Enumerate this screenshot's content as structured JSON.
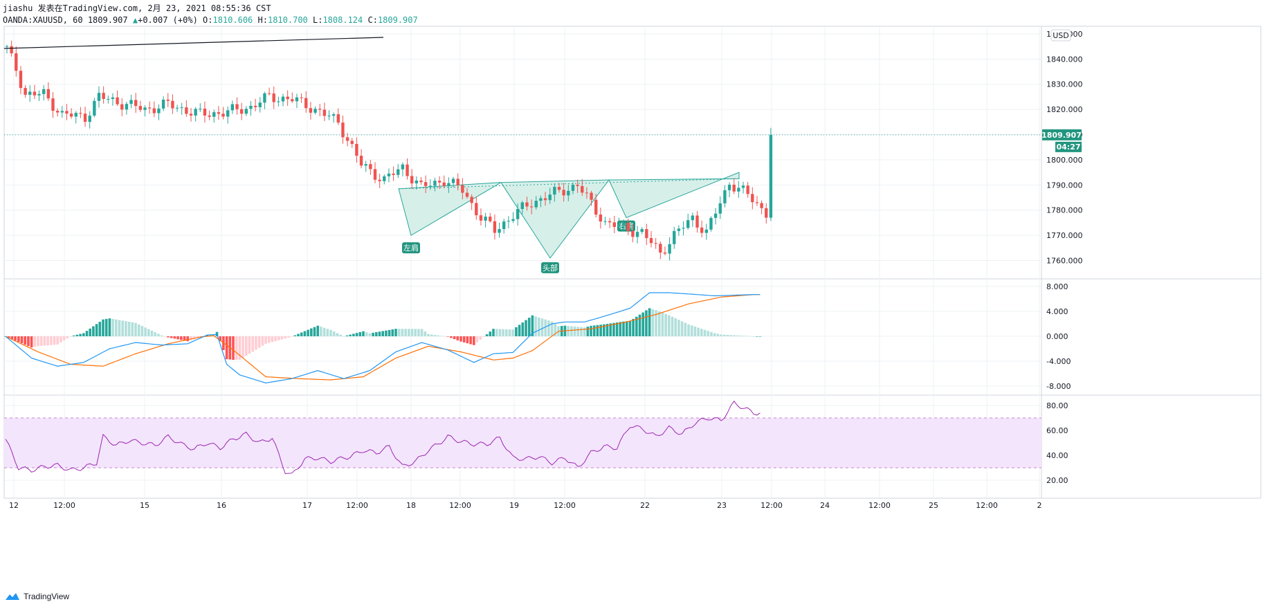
{
  "header": {
    "line1": "jiashu 发表在TradingView.com, 2月 23, 2021 08:55:36 CST",
    "symbol": "OANDA:XAUUSD, 60",
    "last": "1809.907",
    "change_arrow": "▲",
    "change": "+0.007 (+0%)",
    "o_label": "O:",
    "o": "1810.606",
    "h_label": "H:",
    "h": "1810.700",
    "l_label": "L:",
    "l": "1808.124",
    "c_label": "C:",
    "c": "1809.907"
  },
  "currency_badge": "USD",
  "price_tag": "1809.907",
  "countdown_tag": "04:27",
  "brand": "TradingView",
  "colors": {
    "up": "#26a69a",
    "down": "#ef5350",
    "pattern_fill": "#d7efe9",
    "macd_line": "#2196f3",
    "signal_line": "#ff6d00",
    "rsi_line": "#9c27b0",
    "rsi_band": "#f3e5fc",
    "grid": "#eef0f3"
  },
  "chart_data": [
    {
      "type": "candlestick",
      "title": "",
      "ylabel": "",
      "x_ticks": [
        "12",
        "12:00",
        "15",
        "16",
        "17",
        "12:00",
        "18",
        "12:00",
        "19",
        "12:00",
        "22",
        "23",
        "12:00",
        "24",
        "12:00",
        "25",
        "12:00",
        "2"
      ],
      "y_ticks": [
        "1760.000",
        "1770.000",
        "1780.000",
        "1790.000",
        "1800.000",
        "1810.000",
        "1820.000",
        "1830.000",
        "1840.000",
        "1850.000"
      ],
      "ylim": [
        1753,
        1853
      ],
      "close_anchors": {
        "x_index": [
          0,
          2,
          4,
          8,
          12,
          17,
          20,
          26,
          30,
          35,
          42,
          48,
          53,
          57,
          62,
          66,
          72,
          77,
          82,
          86,
          90,
          95,
          99,
          103,
          106,
          110,
          114,
          118,
          124,
          130,
          138,
          142,
          145,
          149,
          152,
          157,
          161,
          165
        ],
        "close": [
          1844,
          1836,
          1826,
          1826,
          1818,
          1817,
          1825,
          1822,
          1820,
          1822,
          1818,
          1819,
          1821,
          1825,
          1824,
          1821,
          1815,
          1798,
          1792,
          1797,
          1789,
          1792,
          1788,
          1777,
          1772,
          1778,
          1783,
          1786,
          1790,
          1775,
          1771,
          1763,
          1770,
          1777,
          1771,
          1791,
          1786,
          1779
        ]
      },
      "pattern": {
        "name": "inverse head and shoulders",
        "labels": [
          "左肩",
          "头部",
          "右肩"
        ],
        "left_shoulder_low": 1770,
        "head_low": 1761,
        "right_shoulder_low": 1777,
        "neckline_high": 1791
      },
      "last_price": 1809.907
    },
    {
      "type": "macd",
      "y_ticks": [
        "8.000",
        "4.000",
        "0.000",
        "-4.000",
        "-8.000"
      ],
      "ylim": [
        -9.5,
        9
      ],
      "macd_anchors": {
        "x_index": [
          0,
          8,
          16,
          24,
          32,
          40,
          48,
          56,
          62,
          65,
          68,
          72,
          80,
          88,
          96,
          104,
          112,
          120,
          128,
          136,
          144,
          150,
          156,
          162,
          168,
          172,
          178,
          184,
          192,
          198,
          204,
          210,
          218,
          224,
          230
        ],
        "value": [
          0,
          -3.5,
          -4.8,
          -4.2,
          -2,
          -1.0,
          -1.4,
          -1.2,
          0.2,
          0.3,
          -4.5,
          -6.2,
          -7.5,
          -6.8,
          -5.5,
          -6.8,
          -5.5,
          -2.5,
          -1.0,
          -2.2,
          -4.2,
          -2.8,
          -2.6,
          0.5,
          2,
          2.3,
          2.3,
          3.2,
          4.5,
          7,
          7.0,
          6.8,
          6.5,
          6.6,
          6.7
        ]
      },
      "signal_anchors": {
        "x_index": [
          0,
          10,
          20,
          30,
          40,
          50,
          60,
          64,
          70,
          80,
          90,
          100,
          110,
          120,
          130,
          140,
          150,
          156,
          162,
          170,
          180,
          190,
          200,
          210,
          220,
          230
        ],
        "value": [
          0,
          -2.5,
          -4.5,
          -4.8,
          -2.8,
          -1.2,
          -0.1,
          0.1,
          -2.2,
          -6.5,
          -6.8,
          -7.0,
          -6.5,
          -3.5,
          -1.6,
          -2.5,
          -3.8,
          -3.5,
          -2.3,
          0.8,
          1.2,
          2.2,
          3.5,
          5.2,
          6.3,
          6.7
        ]
      }
    },
    {
      "type": "line",
      "name": "RSI",
      "y_ticks": [
        "80.00",
        "60.00",
        "40.00",
        "20.00"
      ],
      "ylim": [
        18,
        87
      ],
      "band": [
        30,
        70
      ],
      "anchors": {
        "x_index": [
          0,
          4,
          8,
          12,
          16,
          20,
          24,
          28,
          30,
          34,
          38,
          42,
          46,
          50,
          54,
          58,
          62,
          66,
          70,
          74,
          78,
          82,
          86,
          88,
          92,
          96,
          100,
          104,
          106,
          110,
          114,
          118,
          122,
          126,
          130,
          134,
          136,
          140,
          144,
          148,
          152,
          156,
          160,
          164,
          168,
          172,
          176,
          180,
          184,
          188,
          192,
          196,
          200,
          204,
          208,
          212,
          216,
          220,
          224,
          230
        ],
        "value": [
          53,
          30,
          28,
          31,
          32,
          28,
          30,
          34,
          55,
          48,
          52,
          50,
          48,
          55,
          49,
          45,
          50,
          46,
          53,
          57,
          50,
          54,
          27,
          24,
          37,
          38,
          35,
          38,
          39,
          44,
          42,
          47,
          31,
          35,
          44,
          51,
          55,
          51,
          49,
          49,
          54,
          38,
          37,
          39,
          34,
          38,
          30,
          42,
          47,
          46,
          64,
          61,
          55,
          62,
          57,
          66,
          70,
          68,
          82,
          74
        ]
      }
    }
  ]
}
